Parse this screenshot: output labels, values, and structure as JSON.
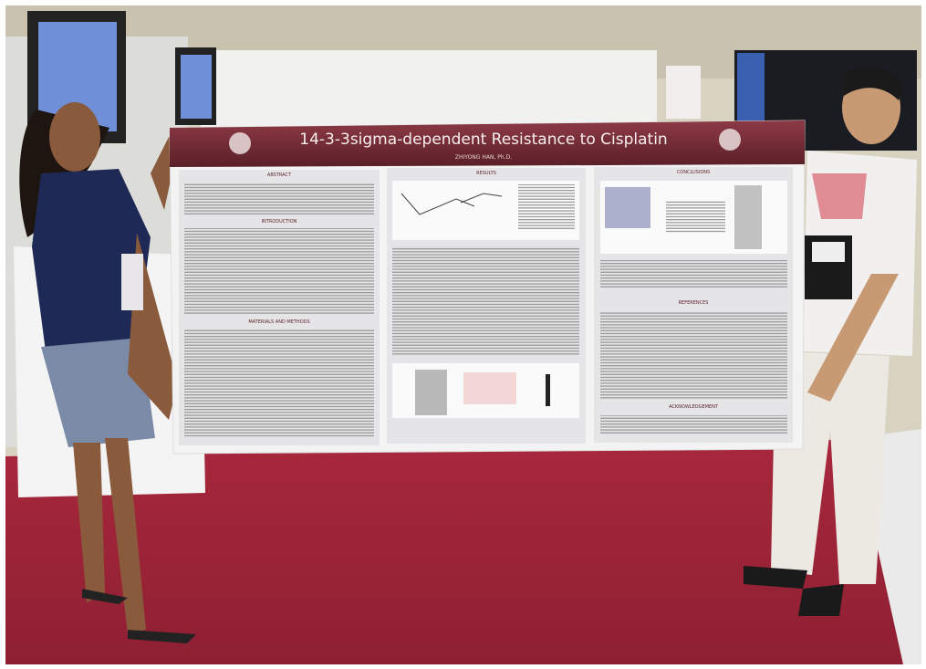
{
  "poster": {
    "title": "14-3-3sigma-dependent Resistance to Cisplatin",
    "author": "ZHIYONG HAN, Ph.D.",
    "sections": [
      "ABSTRACT",
      "INTRODUCTION",
      "MATERIALS AND METHODS",
      "RESULTS",
      "CONCLUSIONS",
      "REFERENCES",
      "ACKNOWLEDGEMENT"
    ]
  }
}
